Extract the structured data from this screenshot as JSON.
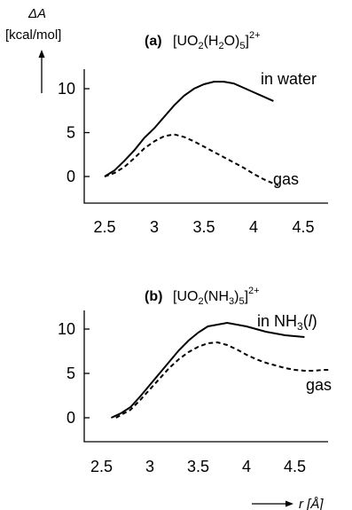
{
  "figure": {
    "ylabel_symbol": "ΔA",
    "ylabel_unit": "[kcal/mol]",
    "xlabel": "r [Å]"
  },
  "chart_data": [
    {
      "type": "line",
      "panel_label": "(a)",
      "title": "[UO2(H2O)5]2+",
      "xlabel": "r [Å]",
      "ylabel": "ΔA [kcal/mol]",
      "xlim": [
        2.5,
        4.9
      ],
      "ylim": [
        0,
        11.5
      ],
      "xticks": [
        2.5,
        3,
        3.5,
        4,
        4.5
      ],
      "yticks": [
        0,
        5,
        10
      ],
      "series": [
        {
          "name": "in water",
          "style": "solid",
          "x": [
            2.5,
            2.6,
            2.7,
            2.8,
            2.9,
            3.0,
            3.1,
            3.2,
            3.3,
            3.4,
            3.5,
            3.6,
            3.7,
            3.8,
            3.9,
            4.0,
            4.1,
            4.2
          ],
          "y": [
            0.0,
            0.7,
            1.8,
            3.0,
            4.4,
            5.5,
            6.8,
            8.1,
            9.2,
            10.0,
            10.5,
            10.8,
            10.8,
            10.6,
            10.1,
            9.6,
            9.1,
            8.6
          ]
        },
        {
          "name": "gas",
          "style": "dashed",
          "x": [
            2.5,
            2.6,
            2.7,
            2.8,
            2.9,
            3.0,
            3.1,
            3.2,
            3.3,
            3.4,
            3.5,
            3.6,
            3.7,
            3.8,
            3.9,
            4.0,
            4.1,
            4.2,
            4.25
          ],
          "y": [
            0.0,
            0.4,
            1.1,
            2.1,
            3.2,
            4.0,
            4.6,
            4.8,
            4.5,
            4.0,
            3.4,
            2.8,
            2.2,
            1.6,
            1.0,
            0.3,
            -0.3,
            -0.8,
            -1.0
          ]
        }
      ]
    },
    {
      "type": "line",
      "panel_label": "(b)",
      "title": "[UO2(NH3)5]2+",
      "xlabel": "r [Å]",
      "ylabel": "ΔA [kcal/mol]",
      "xlim": [
        2.2,
        4.9
      ],
      "ylim": [
        0,
        11.5
      ],
      "xticks": [
        2.5,
        3,
        3.5,
        4,
        4.5
      ],
      "yticks": [
        0,
        5,
        10
      ],
      "series": [
        {
          "name": "in NH3(l)",
          "style": "solid",
          "x": [
            2.6,
            2.7,
            2.8,
            2.9,
            3.0,
            3.1,
            3.2,
            3.3,
            3.4,
            3.5,
            3.6,
            3.7,
            3.8,
            3.9,
            4.0,
            4.1,
            4.2,
            4.3,
            4.4,
            4.5,
            4.6
          ],
          "y": [
            0.0,
            0.5,
            1.2,
            2.4,
            3.7,
            5.0,
            6.3,
            7.6,
            8.7,
            9.6,
            10.3,
            10.5,
            10.7,
            10.5,
            10.3,
            10.0,
            9.7,
            9.5,
            9.3,
            9.2,
            9.1
          ]
        },
        {
          "name": "gas",
          "style": "dashed",
          "x": [
            2.65,
            2.8,
            2.9,
            3.0,
            3.1,
            3.2,
            3.3,
            3.4,
            3.5,
            3.6,
            3.7,
            3.8,
            3.9,
            4.0,
            4.1,
            4.2,
            4.3,
            4.4,
            4.5,
            4.6,
            4.7,
            4.8,
            4.85
          ],
          "y": [
            0.0,
            0.9,
            2.0,
            3.2,
            4.4,
            5.6,
            6.6,
            7.4,
            8.0,
            8.4,
            8.5,
            8.2,
            7.7,
            7.1,
            6.6,
            6.2,
            5.9,
            5.6,
            5.4,
            5.3,
            5.3,
            5.4,
            5.4
          ]
        }
      ]
    }
  ]
}
